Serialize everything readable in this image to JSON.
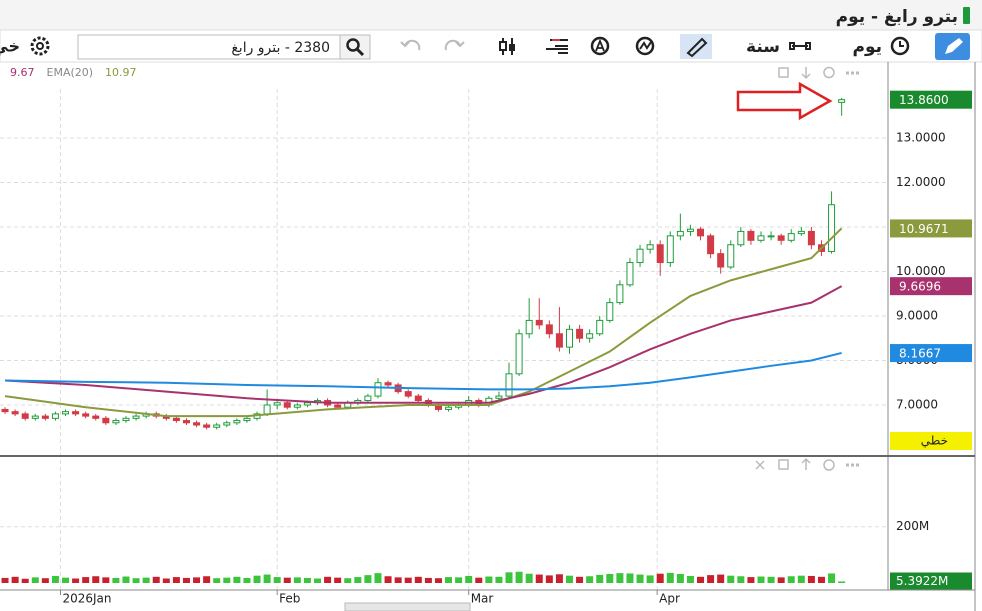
{
  "header": {
    "title": "بترو رابغ - يوم"
  },
  "toolbar": {
    "period": "يوم",
    "range": "سنة",
    "search": "2380 - بترو رابغ",
    "options": "خي"
  },
  "chart_data": {
    "type": "candlestick",
    "up_color": "#1e9e3a",
    "down_color": "#d23a46",
    "xlim": [
      -0.5,
      87.6
    ],
    "xticks": [
      {
        "value": 5.5,
        "label": "2026Jan"
      },
      {
        "value": 27,
        "label": "Feb"
      },
      {
        "value": 46,
        "label": "Mar"
      },
      {
        "value": 64.7,
        "label": "Apr"
      }
    ],
    "ylim": [
      5.876,
      14.1
    ],
    "yticks": [
      {
        "value": 7,
        "label": "7.0000"
      },
      {
        "value": 8,
        "label": "8.0000"
      },
      {
        "value": 9,
        "label": "9.0000"
      },
      {
        "value": 10,
        "label": "10.0000"
      },
      {
        "value": 11,
        "label": "11.0000"
      },
      {
        "value": 12,
        "label": "12.0000"
      },
      {
        "value": 13,
        "label": "13.0000"
      }
    ],
    "grid": true,
    "candles": [
      [
        6.9,
        6.95,
        6.8,
        6.85
      ],
      [
        6.85,
        6.9,
        6.75,
        6.8
      ],
      [
        6.8,
        6.85,
        6.65,
        6.7
      ],
      [
        6.7,
        6.8,
        6.65,
        6.75
      ],
      [
        6.75,
        6.8,
        6.65,
        6.7
      ],
      [
        6.7,
        6.85,
        6.65,
        6.8
      ],
      [
        6.8,
        6.9,
        6.75,
        6.85
      ],
      [
        6.85,
        6.9,
        6.75,
        6.8
      ],
      [
        6.8,
        6.85,
        6.7,
        6.75
      ],
      [
        6.75,
        6.8,
        6.65,
        6.7
      ],
      [
        6.7,
        6.75,
        6.55,
        6.6
      ],
      [
        6.6,
        6.7,
        6.55,
        6.65
      ],
      [
        6.65,
        6.75,
        6.6,
        6.7
      ],
      [
        6.7,
        6.8,
        6.65,
        6.75
      ],
      [
        6.75,
        6.85,
        6.7,
        6.8
      ],
      [
        6.8,
        6.85,
        6.7,
        6.75
      ],
      [
        6.75,
        6.8,
        6.65,
        6.7
      ],
      [
        6.7,
        6.75,
        6.6,
        6.65
      ],
      [
        6.65,
        6.7,
        6.55,
        6.6
      ],
      [
        6.6,
        6.65,
        6.5,
        6.55
      ],
      [
        6.55,
        6.6,
        6.45,
        6.5
      ],
      [
        6.5,
        6.6,
        6.45,
        6.55
      ],
      [
        6.55,
        6.65,
        6.5,
        6.6
      ],
      [
        6.6,
        6.7,
        6.55,
        6.65
      ],
      [
        6.65,
        6.75,
        6.6,
        6.7
      ],
      [
        6.7,
        6.85,
        6.65,
        6.8
      ],
      [
        6.8,
        7.35,
        6.75,
        7.0
      ],
      [
        7.0,
        7.1,
        6.9,
        7.05
      ],
      [
        7.05,
        7.1,
        6.9,
        6.95
      ],
      [
        6.95,
        7.05,
        6.9,
        7.0
      ],
      [
        7.0,
        7.1,
        6.95,
        7.05
      ],
      [
        7.05,
        7.15,
        7.0,
        7.1
      ],
      [
        7.1,
        7.15,
        6.95,
        7.0
      ],
      [
        7.0,
        7.05,
        6.9,
        6.95
      ],
      [
        6.95,
        7.1,
        6.9,
        7.05
      ],
      [
        7.05,
        7.15,
        7.0,
        7.1
      ],
      [
        7.1,
        7.25,
        7.05,
        7.2
      ],
      [
        7.2,
        7.6,
        7.15,
        7.5
      ],
      [
        7.5,
        7.55,
        7.4,
        7.45
      ],
      [
        7.45,
        7.5,
        7.25,
        7.3
      ],
      [
        7.3,
        7.35,
        7.15,
        7.2
      ],
      [
        7.2,
        7.25,
        7.05,
        7.1
      ],
      [
        7.1,
        7.15,
        6.95,
        7.0
      ],
      [
        7.0,
        7.05,
        6.85,
        6.9
      ],
      [
        6.9,
        7.0,
        6.85,
        6.95
      ],
      [
        6.95,
        7.05,
        6.9,
        7.0
      ],
      [
        7.0,
        7.2,
        6.95,
        7.1
      ],
      [
        7.1,
        7.15,
        6.95,
        7.0
      ],
      [
        7.0,
        7.2,
        6.95,
        7.15
      ],
      [
        7.15,
        7.3,
        7.1,
        7.2
      ],
      [
        7.2,
        7.95,
        7.15,
        7.7
      ],
      [
        7.7,
        8.7,
        7.65,
        8.6
      ],
      [
        8.6,
        9.4,
        8.5,
        8.9
      ],
      [
        8.9,
        9.4,
        8.7,
        8.8
      ],
      [
        8.8,
        8.9,
        8.5,
        8.6
      ],
      [
        8.6,
        9.2,
        8.2,
        8.3
      ],
      [
        8.3,
        8.8,
        8.15,
        8.7
      ],
      [
        8.7,
        8.8,
        8.4,
        8.5
      ],
      [
        8.5,
        8.7,
        8.4,
        8.6
      ],
      [
        8.6,
        9.0,
        8.55,
        8.9
      ],
      [
        8.9,
        9.4,
        8.85,
        9.3
      ],
      [
        9.3,
        9.8,
        9.25,
        9.7
      ],
      [
        9.7,
        10.3,
        9.65,
        10.2
      ],
      [
        10.2,
        10.6,
        10.1,
        10.5
      ],
      [
        10.5,
        10.7,
        10.4,
        10.6
      ],
      [
        10.6,
        10.7,
        9.9,
        10.2
      ],
      [
        10.2,
        10.9,
        10.1,
        10.8
      ],
      [
        10.8,
        11.3,
        10.7,
        10.9
      ],
      [
        10.9,
        11.05,
        10.8,
        10.95
      ],
      [
        10.95,
        11.0,
        10.7,
        10.8
      ],
      [
        10.8,
        10.85,
        10.3,
        10.4
      ],
      [
        10.4,
        10.5,
        9.95,
        10.1
      ],
      [
        10.1,
        10.7,
        10.05,
        10.6
      ],
      [
        10.6,
        11.0,
        10.55,
        10.9
      ],
      [
        10.9,
        10.95,
        10.6,
        10.7
      ],
      [
        10.7,
        10.9,
        10.65,
        10.8
      ],
      [
        10.8,
        10.9,
        10.7,
        10.8
      ],
      [
        10.8,
        10.85,
        10.6,
        10.7
      ],
      [
        10.7,
        10.95,
        10.65,
        10.85
      ],
      [
        10.85,
        11.0,
        10.8,
        10.9
      ],
      [
        10.9,
        11.0,
        10.5,
        10.6
      ],
      [
        10.6,
        10.7,
        10.35,
        10.45
      ],
      [
        10.45,
        11.8,
        10.4,
        11.5
      ],
      [
        13.8,
        13.9,
        13.5,
        13.86
      ]
    ],
    "last_price": {
      "value": 13.86,
      "label": "13.8600"
    },
    "last_color": "#1a8a2e",
    "lines": [
      {
        "color": "#8a9a3c",
        "x": [
          0,
          8,
          16,
          24,
          32,
          40,
          48,
          52,
          56,
          60,
          64,
          68,
          72,
          76,
          80,
          83
        ],
        "values": [
          7.2,
          6.95,
          6.75,
          6.75,
          6.9,
          7.0,
          7.0,
          7.3,
          7.75,
          8.2,
          8.85,
          9.45,
          9.8,
          10.05,
          10.3,
          10.97
        ],
        "price_label": 10.9671
      },
      {
        "color": "#a8326e",
        "x": [
          0,
          8,
          16,
          24,
          32,
          40,
          48,
          52,
          56,
          60,
          64,
          68,
          72,
          76,
          80,
          83
        ],
        "values": [
          7.55,
          7.45,
          7.3,
          7.15,
          7.05,
          7.05,
          7.05,
          7.25,
          7.5,
          7.85,
          8.25,
          8.6,
          8.9,
          9.1,
          9.3,
          9.67
        ],
        "price_label": 9.6696
      },
      {
        "color": "#1f8ae0",
        "x": [
          0,
          8,
          16,
          24,
          32,
          40,
          48,
          52,
          56,
          60,
          64,
          68,
          72,
          76,
          80,
          83
        ],
        "values": [
          7.55,
          7.52,
          7.5,
          7.45,
          7.42,
          7.38,
          7.35,
          7.35,
          7.37,
          7.42,
          7.5,
          7.62,
          7.75,
          7.88,
          8.0,
          8.17
        ],
        "price_label": 8.1667
      }
    ],
    "legend": [
      {
        "text": 9.67,
        "color": "#a8326e"
      },
      {
        "text": "EMA(20)",
        "color": "#888888"
      },
      {
        "text": 10.97,
        "color": "#8a9a3c"
      }
    ],
    "scale_label": "خطي",
    "volume": {
      "ylim": [
        0,
        430000000
      ],
      "yticks": [
        {
          "value": 200000000,
          "label": "200M"
        }
      ],
      "values": [
        18000000,
        22000000,
        15000000,
        20000000,
        17000000,
        25000000,
        19000000,
        16000000,
        21000000,
        24000000,
        20000000,
        18000000,
        23000000,
        17000000,
        19000000,
        22000000,
        16000000,
        21000000,
        18000000,
        20000000,
        24000000,
        17000000,
        19000000,
        22000000,
        18000000,
        26000000,
        30000000,
        21000000,
        19000000,
        20000000,
        18000000,
        16000000,
        22000000,
        19000000,
        17000000,
        21000000,
        28000000,
        35000000,
        24000000,
        20000000,
        19000000,
        22000000,
        18000000,
        17000000,
        21000000,
        20000000,
        25000000,
        19000000,
        23000000,
        22000000,
        38000000,
        40000000,
        33000000,
        30000000,
        27000000,
        31000000,
        26000000,
        22000000,
        24000000,
        29000000,
        32000000,
        35000000,
        34000000,
        30000000,
        27000000,
        33000000,
        36000000,
        32000000,
        25000000,
        22000000,
        28000000,
        30000000,
        26000000,
        24000000,
        21000000,
        23000000,
        22000000,
        20000000,
        24000000,
        26000000,
        25000000,
        22000000,
        34000000,
        5392200
      ],
      "last": {
        "value": 5392200,
        "label": "5.3922M"
      }
    }
  }
}
